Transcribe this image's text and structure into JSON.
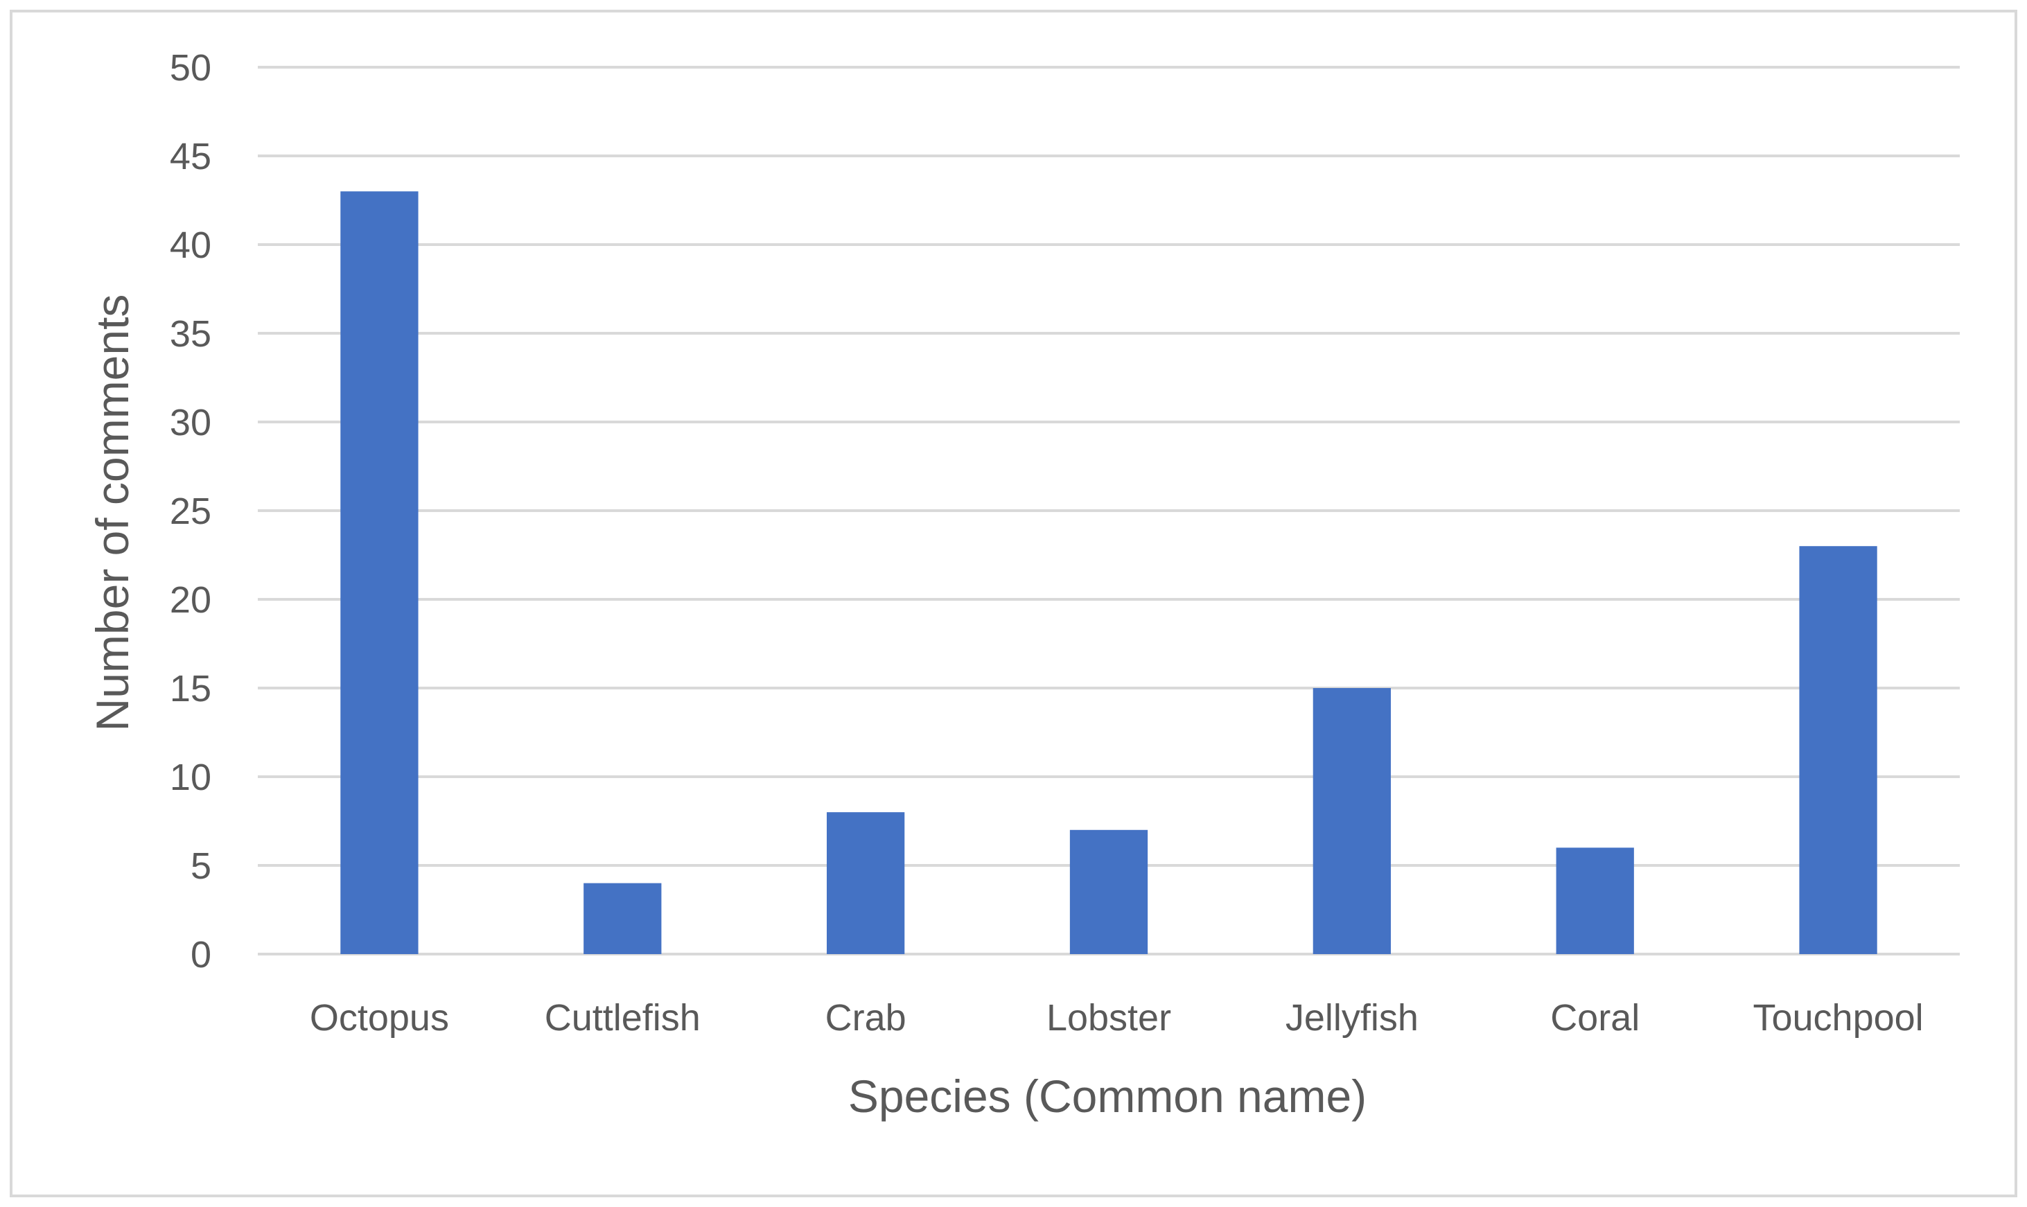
{
  "chart_data": {
    "type": "bar",
    "categories": [
      "Octopus",
      "Cuttlefish",
      "Crab",
      "Lobster",
      "Jellyfish",
      "Coral",
      "Touchpool"
    ],
    "values": [
      43,
      4,
      8,
      7,
      15,
      6,
      23
    ],
    "title": "",
    "xlabel": "Species (Common name)",
    "ylabel": "Number of comments",
    "ylim": [
      0,
      50
    ],
    "yticks": [
      0,
      5,
      10,
      15,
      20,
      25,
      30,
      35,
      40,
      45,
      50
    ],
    "grid": true,
    "legend": "none"
  },
  "colors": {
    "bar": "#4472C4",
    "grid": "#D9D9D9",
    "text": "#595959",
    "border": "#D9D9D9"
  }
}
